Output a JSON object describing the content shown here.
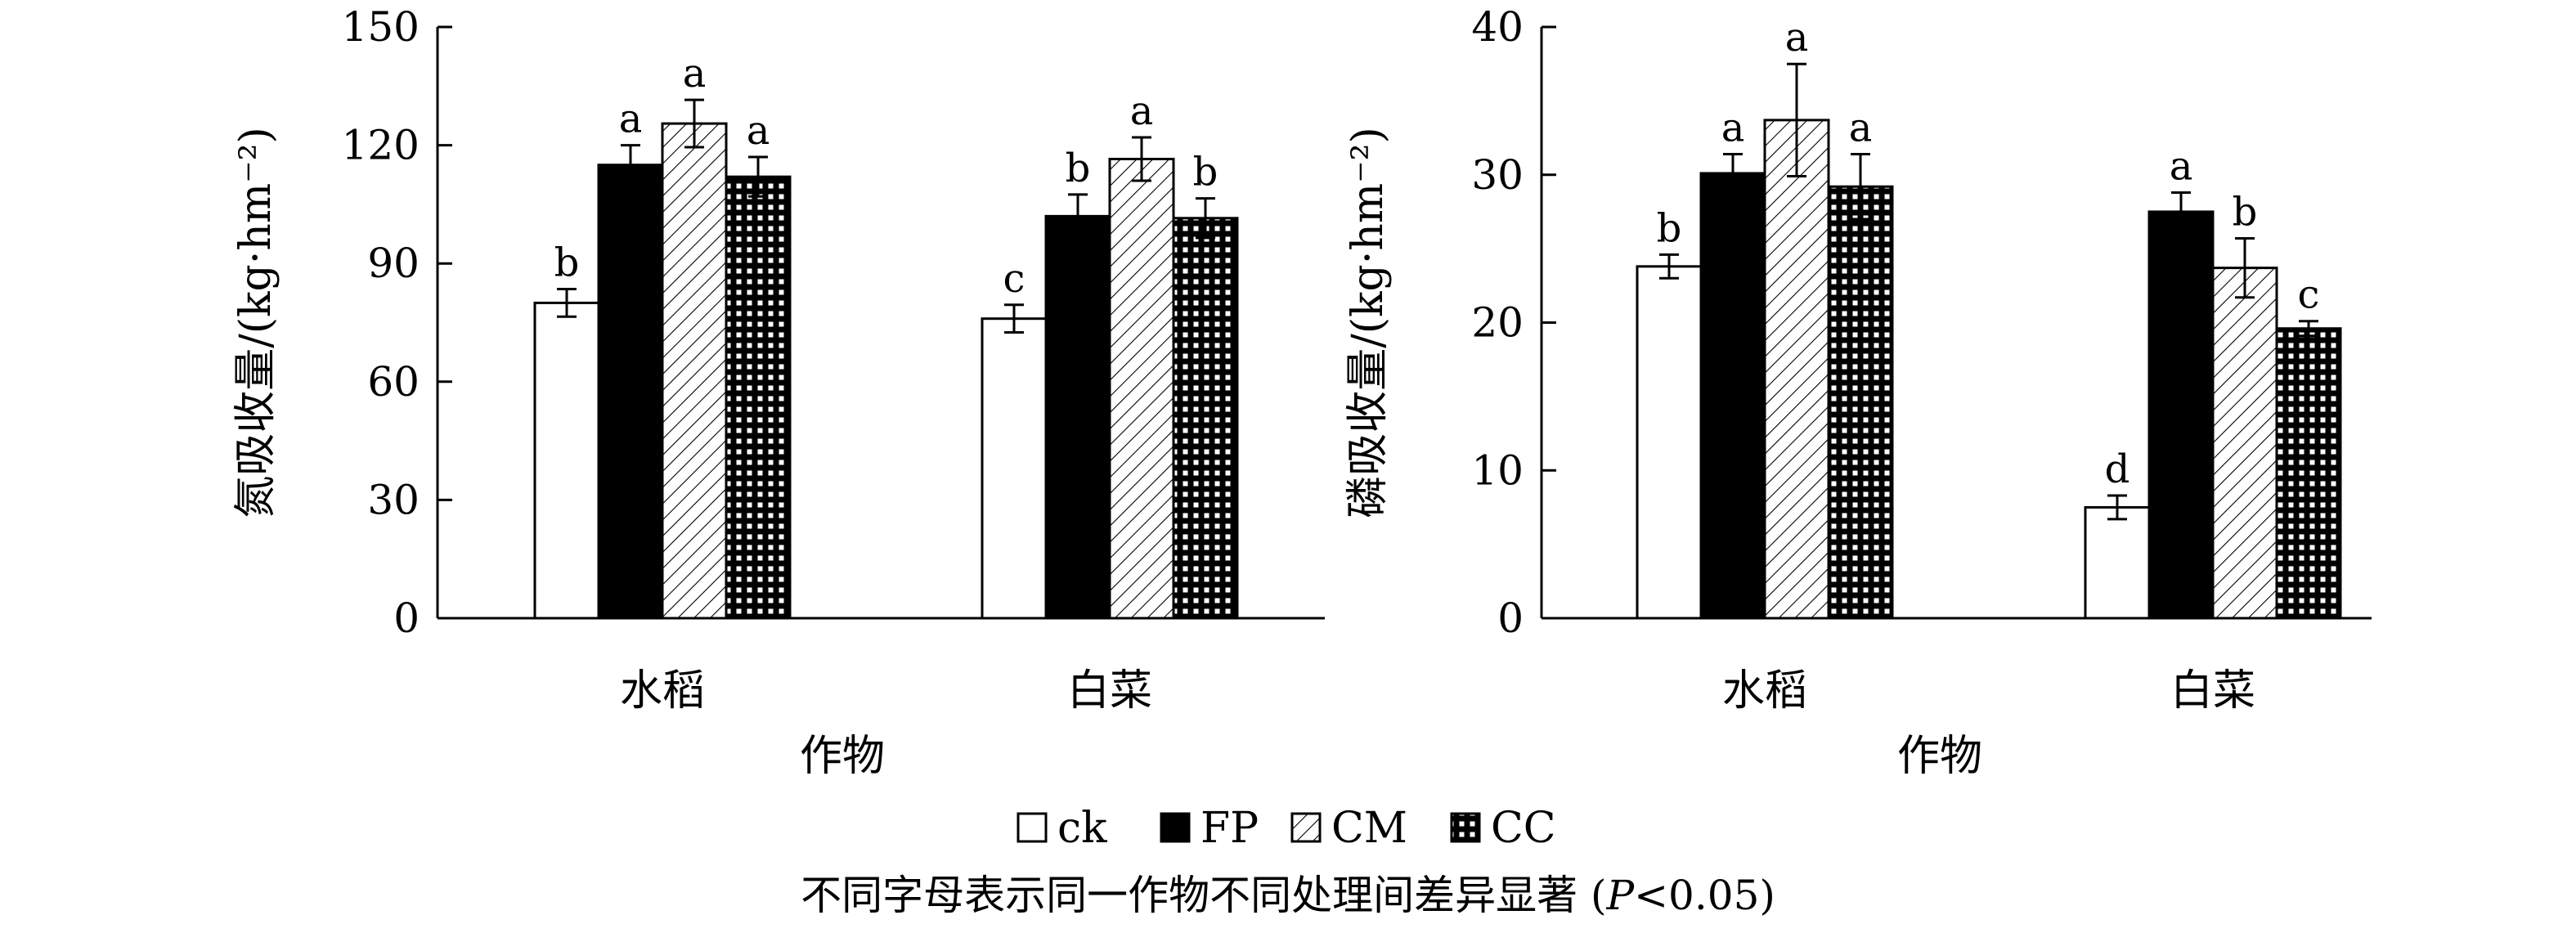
{
  "colors": {
    "ink": "#000000",
    "paper": "#ffffff"
  },
  "legend": {
    "items": [
      {
        "label": "ck",
        "pattern": "none"
      },
      {
        "label": "FP",
        "pattern": "solid"
      },
      {
        "label": "CM",
        "pattern": "hatch"
      },
      {
        "label": "CC",
        "pattern": "grid"
      }
    ]
  },
  "caption": {
    "main": "不同字母表示同一作物不同处理间差异显著 (",
    "p": "P",
    "rest": "<0.05)"
  },
  "chart_data": [
    {
      "type": "bar",
      "xlabel": "作物",
      "ylabel": "氮吸收量/(kg·hm⁻²)",
      "ylim": [
        0,
        150
      ],
      "yticks": [
        0,
        30,
        60,
        90,
        120,
        150
      ],
      "categories": [
        "水稻",
        "白菜"
      ],
      "series": [
        {
          "name": "ck",
          "values": [
            80,
            76
          ],
          "errors": [
            3.5,
            3.5
          ],
          "letters": [
            "b",
            "c"
          ]
        },
        {
          "name": "FP",
          "values": [
            115,
            102
          ],
          "errors": [
            5,
            5.5
          ],
          "letters": [
            "a",
            "b"
          ]
        },
        {
          "name": "CM",
          "values": [
            125.5,
            116.5
          ],
          "errors": [
            6,
            5.5
          ],
          "letters": [
            "a",
            "a"
          ]
        },
        {
          "name": "CC",
          "values": [
            112,
            101.5
          ],
          "errors": [
            5,
            5
          ],
          "letters": [
            "a",
            "b"
          ]
        }
      ]
    },
    {
      "type": "bar",
      "xlabel": "作物",
      "ylabel": "磷吸收量/(kg·hm⁻²)",
      "ylim": [
        0,
        40
      ],
      "yticks": [
        0,
        10,
        20,
        30,
        40
      ],
      "categories": [
        "水稻",
        "白菜"
      ],
      "series": [
        {
          "name": "ck",
          "values": [
            23.8,
            7.5
          ],
          "errors": [
            0.8,
            0.8
          ],
          "letters": [
            "b",
            "d"
          ]
        },
        {
          "name": "FP",
          "values": [
            30.1,
            27.5
          ],
          "errors": [
            1.3,
            1.3
          ],
          "letters": [
            "a",
            "a"
          ]
        },
        {
          "name": "CM",
          "values": [
            33.7,
            23.7
          ],
          "errors": [
            3.8,
            2.0
          ],
          "letters": [
            "a",
            "b"
          ]
        },
        {
          "name": "CC",
          "values": [
            29.2,
            19.6
          ],
          "errors": [
            2.2,
            0.5
          ],
          "letters": [
            "a",
            "c"
          ]
        }
      ]
    }
  ]
}
